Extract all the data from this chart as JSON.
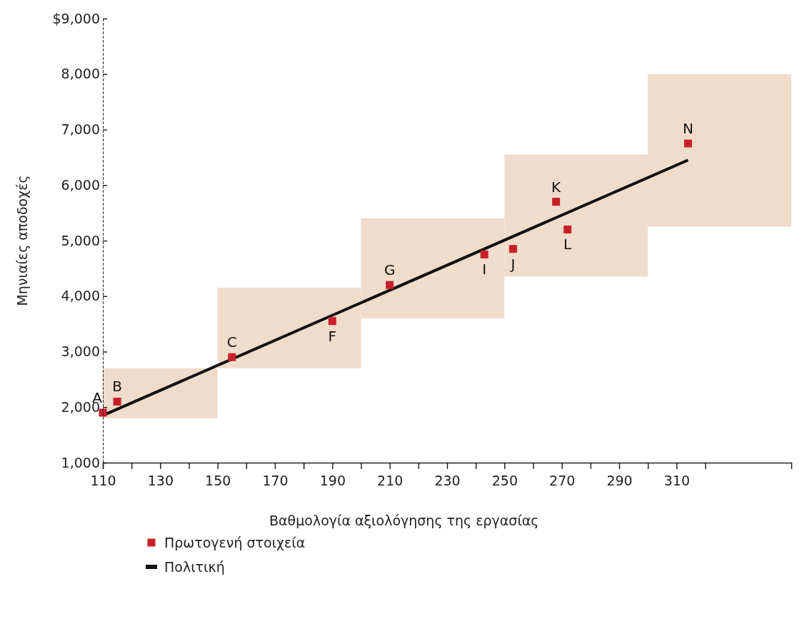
{
  "chart_data": {
    "type": "bar",
    "xlabel": "Βαθμολογία αξιολόγησης της εργασίας",
    "ylabel": "Μηνιαίες αποδοχές",
    "xlim": [
      110,
      350
    ],
    "ylim": [
      1000,
      9000
    ],
    "xticks": [
      110,
      {
        "value": 120,
        "label": null
      },
      130,
      {
        "value": 140,
        "label": null
      },
      150,
      {
        "value": 160,
        "label": null
      },
      170,
      {
        "value": 180,
        "label": null
      },
      190,
      {
        "value": 200,
        "label": null
      },
      210,
      {
        "value": 220,
        "label": null
      },
      230,
      {
        "value": 240,
        "label": null
      },
      250,
      {
        "value": 260,
        "label": null
      },
      270,
      {
        "value": 280,
        "label": null
      },
      290,
      {
        "value": 300,
        "label": null
      },
      310,
      {
        "value": 320,
        "label": null
      }
    ],
    "yticks": [
      {
        "value": 1000,
        "label": "1,000"
      },
      {
        "value": 2000,
        "label": "2,000"
      },
      {
        "value": 3000,
        "label": "3,000"
      },
      {
        "value": 4000,
        "label": "4,000"
      },
      {
        "value": 5000,
        "label": "5,000"
      },
      {
        "value": 6000,
        "label": "6,000"
      },
      {
        "value": 7000,
        "label": "7,000"
      },
      {
        "value": 8000,
        "label": "8,000"
      },
      {
        "value": 9000,
        "label": "$9,000"
      }
    ],
    "grid": false,
    "legend": "bottom left",
    "series": [
      {
        "color": "#f0dccb",
        "x": [
          125,
          175,
          225,
          275,
          325
        ],
        "base": [
          1800,
          2700,
          3600,
          4350,
          5250
        ],
        "values": [
          900,
          1450,
          1800,
          2200,
          2750
        ]
      },
      {
        "type": "scatter",
        "name": "Πρωτογενή στοιχεία",
        "marker": "square",
        "color": "#c8202a",
        "x": [
          110,
          115,
          155,
          190,
          210,
          243,
          253,
          268,
          272,
          314
        ],
        "values": [
          1900,
          2100,
          2900,
          3550,
          4200,
          4750,
          4850,
          5700,
          5200,
          6750
        ]
      },
      {
        "type": "line",
        "name": "Πολιτική",
        "color": "#111111",
        "line_style": "solid",
        "x": [
          110,
          314
        ],
        "values": [
          1850,
          6450
        ]
      }
    ],
    "annotations": [
      {
        "text": "A",
        "x": 110,
        "y": 1900
      },
      {
        "text": "B",
        "x": 115,
        "y": 2100
      },
      {
        "text": "C",
        "x": 155,
        "y": 2900
      },
      {
        "text": "F",
        "x": 190,
        "y": 3550
      },
      {
        "text": "G",
        "x": 210,
        "y": 4200
      },
      {
        "text": "I",
        "x": 243,
        "y": 4750
      },
      {
        "text": "J",
        "x": 253,
        "y": 4850
      },
      {
        "text": "K",
        "x": 268,
        "y": 5700
      },
      {
        "text": "L",
        "x": 272,
        "y": 5200
      },
      {
        "text": "N",
        "x": 314,
        "y": 6750
      }
    ]
  }
}
